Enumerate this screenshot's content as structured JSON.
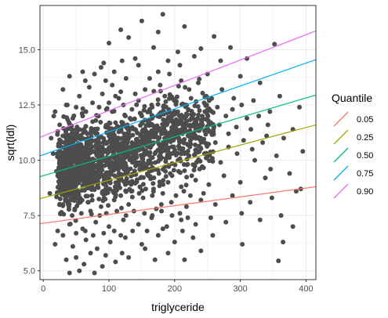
{
  "chart_data": {
    "type": "scatter",
    "title": "",
    "xlabel": "triglyceride",
    "ylabel": "sqrt(ldl)",
    "xlim": [
      -5,
      415
    ],
    "ylim": [
      4.6,
      17.0
    ],
    "x_ticks": [
      0,
      100,
      200,
      300,
      400
    ],
    "y_ticks": [
      5.0,
      7.5,
      10.0,
      12.5,
      15.0
    ],
    "x_tick_labels": [
      "0",
      "100",
      "200",
      "300",
      "400"
    ],
    "y_tick_labels": [
      "5.0",
      "7.5",
      "10.0",
      "12.5",
      "15.0"
    ],
    "grid": true,
    "point_color": "#4d4d4d",
    "points": [
      [
        150,
        16.3
      ],
      [
        182,
        16.6
      ],
      [
        215,
        16.05
      ],
      [
        118,
        15.9
      ],
      [
        175,
        15.8
      ],
      [
        130,
        15.55
      ],
      [
        352,
        15.25
      ],
      [
        285,
        15.1
      ],
      [
        240,
        15.05
      ],
      [
        260,
        15.6
      ],
      [
        100,
        15.3
      ],
      [
        168,
        15.1
      ],
      [
        205,
        14.9
      ],
      [
        230,
        14.7
      ],
      [
        310,
        14.6
      ],
      [
        270,
        14.5
      ],
      [
        190,
        14.5
      ],
      [
        145,
        14.3
      ],
      [
        120,
        14.5
      ],
      [
        88,
        14.2
      ],
      [
        60,
        14.0
      ],
      [
        40,
        13.8
      ],
      [
        250,
        13.9
      ],
      [
        330,
        13.5
      ],
      [
        300,
        13.8
      ],
      [
        210,
        13.6
      ],
      [
        175,
        14.0
      ],
      [
        155,
        13.2
      ],
      [
        95,
        13.6
      ],
      [
        70,
        13.3
      ],
      [
        30,
        13.2
      ],
      [
        360,
        12.9
      ],
      [
        320,
        12.7
      ],
      [
        290,
        12.8
      ],
      [
        265,
        12.4
      ],
      [
        245,
        12.6
      ],
      [
        225,
        12.8
      ],
      [
        200,
        12.2
      ],
      [
        185,
        12.9
      ],
      [
        165,
        12.5
      ],
      [
        140,
        13.0
      ],
      [
        115,
        12.8
      ],
      [
        85,
        12.4
      ],
      [
        55,
        12.9
      ],
      [
        35,
        12.5
      ],
      [
        18,
        12.2
      ],
      [
        390,
        12.4
      ],
      [
        345,
        12.2
      ],
      [
        310,
        11.9
      ],
      [
        278,
        12.0
      ],
      [
        255,
        11.7
      ],
      [
        235,
        11.9
      ],
      [
        215,
        11.5
      ],
      [
        195,
        11.8
      ],
      [
        172,
        11.4
      ],
      [
        150,
        12.0
      ],
      [
        128,
        11.6
      ],
      [
        105,
        12.2
      ],
      [
        80,
        11.8
      ],
      [
        62,
        11.4
      ],
      [
        45,
        11.9
      ],
      [
        25,
        11.6
      ],
      [
        12,
        11.0
      ],
      [
        380,
        11.4
      ],
      [
        340,
        11.1
      ],
      [
        305,
        10.9
      ],
      [
        282,
        11.2
      ],
      [
        262,
        10.8
      ],
      [
        240,
        11.0
      ],
      [
        220,
        10.7
      ],
      [
        198,
        10.9
      ],
      [
        178,
        10.6
      ],
      [
        158,
        11.1
      ],
      [
        135,
        10.8
      ],
      [
        112,
        11.0
      ],
      [
        90,
        10.6
      ],
      [
        70,
        10.9
      ],
      [
        50,
        10.5
      ],
      [
        32,
        10.8
      ],
      [
        15,
        10.3
      ],
      [
        395,
        10.4
      ],
      [
        355,
        10.2
      ],
      [
        322,
        10.0
      ],
      [
        295,
        10.3
      ],
      [
        270,
        9.9
      ],
      [
        248,
        10.1
      ],
      [
        228,
        9.8
      ],
      [
        205,
        10.0
      ],
      [
        185,
        9.7
      ],
      [
        162,
        10.2
      ],
      [
        142,
        9.9
      ],
      [
        120,
        10.1
      ],
      [
        98,
        9.8
      ],
      [
        78,
        10.0
      ],
      [
        58,
        9.7
      ],
      [
        38,
        9.9
      ],
      [
        20,
        9.5
      ],
      [
        375,
        9.4
      ],
      [
        338,
        9.2
      ],
      [
        300,
        9.0
      ],
      [
        275,
        9.3
      ],
      [
        252,
        8.9
      ],
      [
        232,
        9.1
      ],
      [
        210,
        8.8
      ],
      [
        190,
        9.0
      ],
      [
        168,
        8.7
      ],
      [
        148,
        9.2
      ],
      [
        125,
        8.9
      ],
      [
        102,
        9.1
      ],
      [
        82,
        8.8
      ],
      [
        62,
        9.0
      ],
      [
        42,
        8.7
      ],
      [
        25,
        8.9
      ],
      [
        10,
        8.5
      ],
      [
        385,
        8.6
      ],
      [
        348,
        8.3
      ],
      [
        315,
        8.1
      ],
      [
        288,
        8.4
      ],
      [
        262,
        8.0
      ],
      [
        240,
        8.2
      ],
      [
        218,
        7.9
      ],
      [
        195,
        8.1
      ],
      [
        172,
        7.8
      ],
      [
        152,
        8.3
      ],
      [
        130,
        8.0
      ],
      [
        108,
        8.2
      ],
      [
        88,
        7.9
      ],
      [
        68,
        8.1
      ],
      [
        48,
        7.8
      ],
      [
        30,
        8.0
      ],
      [
        392,
        8.7
      ],
      [
        362,
        7.5
      ],
      [
        330,
        7.3
      ],
      [
        302,
        7.6
      ],
      [
        278,
        7.2
      ],
      [
        255,
        7.4
      ],
      [
        232,
        7.1
      ],
      [
        210,
        7.3
      ],
      [
        188,
        7.0
      ],
      [
        165,
        7.4
      ],
      [
        145,
        7.1
      ],
      [
        122,
        7.3
      ],
      [
        100,
        7.0
      ],
      [
        80,
        7.2
      ],
      [
        60,
        6.9
      ],
      [
        40,
        7.1
      ],
      [
        22,
        6.8
      ],
      [
        380,
        7.0
      ],
      [
        303,
        6.2
      ],
      [
        365,
        6.3
      ],
      [
        258,
        6.6
      ],
      [
        228,
        6.5
      ],
      [
        200,
        6.3
      ],
      [
        175,
        6.6
      ],
      [
        150,
        6.2
      ],
      [
        125,
        6.5
      ],
      [
        102,
        6.3
      ],
      [
        82,
        6.0
      ],
      [
        65,
        6.4
      ],
      [
        45,
        6.1
      ],
      [
        30,
        6.6
      ],
      [
        18,
        6.2
      ],
      [
        240,
        5.9
      ],
      [
        190,
        5.8
      ],
      [
        155,
        6.0
      ],
      [
        120,
        5.8
      ],
      [
        95,
        5.7
      ],
      [
        72,
        5.8
      ],
      [
        50,
        5.6
      ],
      [
        35,
        5.5
      ],
      [
        358,
        5.45
      ],
      [
        215,
        5.5
      ],
      [
        170,
        5.5
      ],
      [
        130,
        5.6
      ],
      [
        110,
        5.4
      ],
      [
        90,
        5.2
      ],
      [
        62,
        5.3
      ],
      [
        40,
        4.9
      ],
      [
        55,
        5.0
      ],
      [
        78,
        4.9
      ],
      [
        100,
        12.6
      ],
      [
        110,
        12.9
      ],
      [
        90,
        13.0
      ],
      [
        75,
        12.6
      ],
      [
        65,
        12.2
      ],
      [
        105,
        13.4
      ],
      [
        118,
        13.1
      ],
      [
        135,
        12.3
      ],
      [
        145,
        12.7
      ],
      [
        125,
        12.0
      ],
      [
        80,
        11.2
      ],
      [
        95,
        11.5
      ],
      [
        110,
        11.7
      ],
      [
        60,
        12.0
      ],
      [
        50,
        12.4
      ],
      [
        42,
        11.1
      ],
      [
        58,
        10.2
      ],
      [
        72,
        10.4
      ],
      [
        85,
        10.2
      ],
      [
        98,
        10.4
      ],
      [
        115,
        10.5
      ],
      [
        130,
        10.3
      ],
      [
        140,
        11.4
      ],
      [
        160,
        11.7
      ],
      [
        170,
        10.3
      ],
      [
        180,
        11.2
      ],
      [
        190,
        10.4
      ],
      [
        200,
        11.4
      ],
      [
        212,
        11.2
      ],
      [
        222,
        10.2
      ],
      [
        66,
        9.4
      ],
      [
        76,
        9.6
      ],
      [
        88,
        9.3
      ],
      [
        104,
        9.5
      ],
      [
        116,
        9.3
      ],
      [
        128,
        9.6
      ],
      [
        138,
        9.4
      ],
      [
        152,
        9.6
      ],
      [
        160,
        9.3
      ],
      [
        176,
        9.4
      ],
      [
        186,
        9.5
      ],
      [
        196,
        9.3
      ],
      [
        206,
        9.5
      ],
      [
        226,
        9.3
      ],
      [
        238,
        9.6
      ],
      [
        48,
        9.2
      ],
      [
        36,
        9.4
      ],
      [
        28,
        10.1
      ],
      [
        22,
        11.3
      ],
      [
        16,
        12.0
      ],
      [
        74,
        8.4
      ],
      [
        92,
        8.5
      ],
      [
        106,
        8.6
      ],
      [
        118,
        8.4
      ],
      [
        134,
        8.6
      ],
      [
        146,
        8.5
      ],
      [
        156,
        8.7
      ],
      [
        166,
        8.4
      ],
      [
        182,
        8.5
      ],
      [
        202,
        8.4
      ],
      [
        214,
        8.6
      ],
      [
        224,
        8.4
      ],
      [
        244,
        8.5
      ],
      [
        56,
        8.3
      ],
      [
        38,
        8.4
      ],
      [
        26,
        7.6
      ],
      [
        44,
        7.5
      ],
      [
        58,
        7.6
      ],
      [
        72,
        7.7
      ],
      [
        86,
        7.5
      ],
      [
        96,
        7.6
      ],
      [
        112,
        7.7
      ],
      [
        126,
        7.5
      ],
      [
        138,
        7.7
      ],
      [
        154,
        7.6
      ],
      [
        166,
        7.5
      ],
      [
        180,
        7.7
      ],
      [
        196,
        7.5
      ],
      [
        208,
        7.6
      ],
      [
        220,
        7.4
      ],
      [
        50,
        6.7
      ],
      [
        64,
        6.8
      ],
      [
        76,
        6.6
      ],
      [
        92,
        6.7
      ],
      [
        108,
        6.8
      ],
      [
        118,
        6.6
      ],
      [
        136,
        6.8
      ],
      [
        158,
        6.8
      ],
      [
        182,
        6.9
      ],
      [
        212,
        6.8
      ],
      [
        84,
        12.0
      ],
      [
        96,
        12.3
      ],
      [
        108,
        11.4
      ],
      [
        122,
        12.5
      ],
      [
        132,
        11.9
      ],
      [
        148,
        11.1
      ],
      [
        162,
        12.3
      ],
      [
        174,
        12.0
      ],
      [
        188,
        11.6
      ],
      [
        202,
        12.6
      ],
      [
        218,
        12.1
      ],
      [
        232,
        11.4
      ],
      [
        246,
        12.2
      ],
      [
        258,
        11.3
      ],
      [
        268,
        11.6
      ],
      [
        282,
        10.6
      ],
      [
        294,
        11.5
      ],
      [
        318,
        10.5
      ],
      [
        334,
        10.8
      ],
      [
        346,
        9.6
      ],
      [
        64,
        13.6
      ],
      [
        78,
        13.9
      ],
      [
        92,
        14.4
      ],
      [
        108,
        14.0
      ],
      [
        126,
        13.7
      ],
      [
        140,
        14.6
      ],
      [
        162,
        13.7
      ],
      [
        178,
        13.4
      ],
      [
        192,
        13.9
      ],
      [
        208,
        14.3
      ],
      [
        222,
        13.2
      ],
      [
        236,
        13.5
      ],
      [
        248,
        12.9
      ],
      [
        272,
        13.2
      ],
      [
        288,
        12.3
      ],
      [
        302,
        12.5
      ],
      [
        316,
        11.4
      ],
      [
        328,
        12.0
      ],
      [
        342,
        11.6
      ],
      [
        366,
        11.0
      ]
    ],
    "quantile_lines": [
      {
        "name": "0.05",
        "color": "#F8766D",
        "x": [
          0,
          415
        ],
        "y": [
          7.15,
          8.8
        ]
      },
      {
        "name": "0.25",
        "color": "#A3A500",
        "x": [
          0,
          415
        ],
        "y": [
          8.3,
          11.6
        ]
      },
      {
        "name": "0.50",
        "color": "#00BF7D",
        "x": [
          0,
          415
        ],
        "y": [
          9.3,
          12.95
        ]
      },
      {
        "name": "0.75",
        "color": "#00B0F6",
        "x": [
          0,
          415
        ],
        "y": [
          10.25,
          14.55
        ]
      },
      {
        "name": "0.90",
        "color": "#E76BF3",
        "x": [
          0,
          415
        ],
        "y": [
          11.1,
          15.85
        ]
      }
    ],
    "legend": {
      "title": "Quantile",
      "position": "right",
      "entries": [
        "0.05",
        "0.25",
        "0.50",
        "0.75",
        "0.90"
      ]
    }
  }
}
